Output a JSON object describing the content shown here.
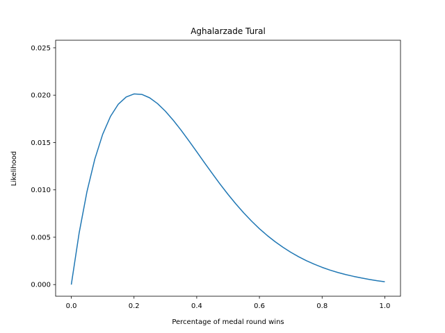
{
  "chart_data": {
    "type": "line",
    "title": "Aghalarzade Tural",
    "xlabel": "Percentage of medal round wins",
    "ylabel": "Likelihood",
    "xlim": [
      -0.05,
      1.05
    ],
    "ylim": [
      -0.00123,
      0.0258
    ],
    "xticks": [
      0.0,
      0.2,
      0.4,
      0.6,
      0.8,
      1.0
    ],
    "xtick_labels": [
      "0.0",
      "0.2",
      "0.4",
      "0.6",
      "0.8",
      "1.0"
    ],
    "yticks": [
      0.0,
      0.005,
      0.01,
      0.015,
      0.02,
      0.025
    ],
    "ytick_labels": [
      "0.000",
      "0.005",
      "0.010",
      "0.015",
      "0.020",
      "0.025"
    ],
    "grid": false,
    "series": [
      {
        "color": "#1f77b4",
        "x": [
          0.0,
          0.025,
          0.05,
          0.075,
          0.1,
          0.125,
          0.15,
          0.175,
          0.2,
          0.225,
          0.25,
          0.275,
          0.3,
          0.325,
          0.35,
          0.375,
          0.4,
          0.425,
          0.45,
          0.475,
          0.5,
          0.525,
          0.55,
          0.575,
          0.6,
          0.625,
          0.65,
          0.675,
          0.7,
          0.725,
          0.75,
          0.775,
          0.8,
          0.825,
          0.85,
          0.875,
          0.9,
          0.925,
          0.95,
          0.975,
          1.0
        ],
        "y": [
          0.0,
          0.00545,
          0.00982,
          0.01325,
          0.01586,
          0.01776,
          0.01905,
          0.01981,
          0.02013,
          0.02008,
          0.01972,
          0.01911,
          0.01831,
          0.01736,
          0.01631,
          0.01518,
          0.01403,
          0.01286,
          0.01171,
          0.01059,
          0.00952,
          0.00851,
          0.00757,
          0.0067,
          0.0059,
          0.00518,
          0.00453,
          0.00394,
          0.00341,
          0.00294,
          0.00252,
          0.00215,
          0.00182,
          0.00153,
          0.00128,
          0.00106,
          0.00087,
          0.0007,
          0.00055,
          0.00041,
          0.0003
        ]
      }
    ]
  }
}
